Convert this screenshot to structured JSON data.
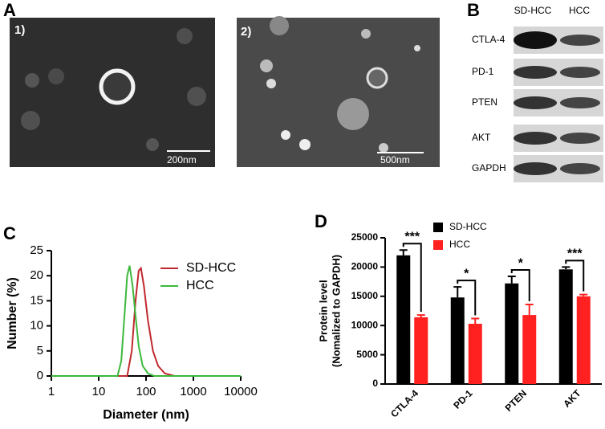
{
  "panel_labels": [
    "A",
    "B",
    "C",
    "D"
  ],
  "micrographs": [
    {
      "label": "1)",
      "scale_bar": "200nm"
    },
    {
      "label": "2)",
      "scale_bar": "500nm"
    }
  ],
  "western_blot": {
    "columns": [
      "SD-HCC",
      "HCC"
    ],
    "rows": [
      "CTLA-4",
      "PD-1",
      "PTEN",
      "AKT",
      "GAPDH"
    ]
  },
  "chart_data": [
    {
      "type": "line",
      "xlabel": "Diameter (nm)",
      "ylabel": "Number (%)",
      "xscale": "log",
      "xlim": [
        1,
        10000
      ],
      "xticks": [
        1,
        10,
        100,
        1000,
        10000
      ],
      "ylim": [
        0,
        25
      ],
      "yticks": [
        0,
        5,
        10,
        15,
        20,
        25
      ],
      "legend": "upper right",
      "series": [
        {
          "name": "SD-HCC",
          "color": "#c0282d",
          "x": [
            1,
            40,
            50,
            60,
            70,
            78,
            90,
            110,
            140,
            180,
            250,
            400,
            10000
          ],
          "values": [
            0,
            0,
            5,
            15,
            21,
            21.5,
            18,
            11,
            5,
            2,
            0.5,
            0,
            0
          ]
        },
        {
          "name": "HCC",
          "color": "#3cb83c",
          "x": [
            1,
            25,
            30,
            35,
            40,
            45,
            52,
            60,
            70,
            85,
            110,
            150,
            10000
          ],
          "values": [
            0,
            0,
            3,
            12,
            20,
            22,
            18,
            12,
            6,
            2,
            0.5,
            0,
            0
          ]
        }
      ]
    },
    {
      "type": "bar",
      "ylabel": [
        "Protein level",
        "(Nomalized to GAPDH)"
      ],
      "categories": [
        "CTLA-4",
        "PD-1",
        "PTEN",
        "AKT"
      ],
      "ylim": [
        0,
        25000
      ],
      "yticks": [
        0,
        5000,
        10000,
        15000,
        20000,
        25000
      ],
      "legend": "upper left",
      "significance": [
        "***",
        "*",
        "*",
        "***"
      ],
      "series": [
        {
          "name": "SD-HCC",
          "color": "#000000",
          "values": [
            22000,
            14800,
            17200,
            19600
          ],
          "errors": [
            900,
            1800,
            1200,
            400
          ]
        },
        {
          "name": "HCC",
          "color": "#ff2020",
          "values": [
            11400,
            10300,
            11800,
            15000
          ],
          "errors": [
            400,
            900,
            1800,
            300
          ]
        }
      ]
    }
  ]
}
